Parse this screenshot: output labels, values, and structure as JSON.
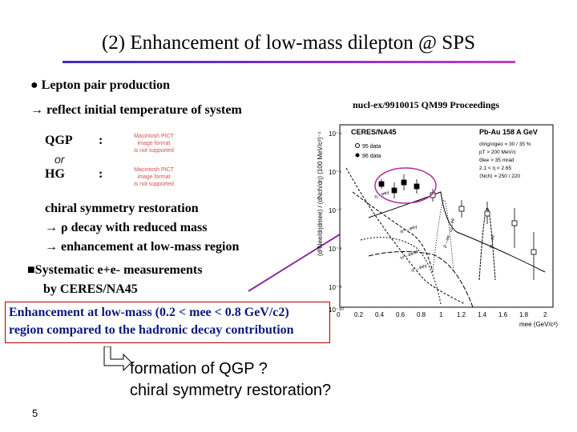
{
  "title": "(2) Enhancement of low-mass dilepton @ SPS",
  "lepton_pair": "● Lepton pair production",
  "reflect": "→ reflect initial temperature of system",
  "qgp": "QGP",
  "or": "or",
  "hg": "HG",
  "colon": ":",
  "pict_placeholder": [
    "Macintosh PICT",
    "image format",
    "is not supported"
  ],
  "chiral_lines": [
    "chiral symmetry restoration",
    "→   ρ decay with reduced mass",
    "→   enhancement at low-mass region"
  ],
  "systematic_line1": "■Systematic e+e- measurements",
  "systematic_line2": "by CERES/NA45",
  "enhancement_line1": "Enhancement at low-mass (0.2 < mee < 0.8 GeV/c2)",
  "enhancement_line2": "region compared to the hadronic decay contribution",
  "formation_line1": "formation of QGP ?",
  "formation_line2": "chiral symmetry restoration?",
  "page_number": "5",
  "reference": "nucl-ex/9910015 QM99 Proceedings",
  "colors": {
    "title_gradient_start": "#3a2fb8",
    "title_gradient_end": "#c040c0",
    "box_border": "#b00000",
    "box_text": "#0a1880",
    "pointer_arrow": "#8a2aa0"
  },
  "plot": {
    "experiment": "CERES/NA45",
    "system": "Pb-Au 158 A GeV",
    "legend": [
      "95 data",
      "96 data"
    ],
    "cuts": [
      "σtrig/σgeo = 30 / 35 %",
      "pT > 200 MeV/c",
      "Θee > 35 mrad",
      "2.1 < η < 2.65",
      "⟨Nch⟩ = 250 / 220"
    ],
    "y_axis_label": "(d²Nee/dηdmee) / (dNch/dη) (100 MeV/c²)⁻¹",
    "x_axis_label": "mee (GeV/c²)",
    "y_ticks": [
      "10⁻⁵",
      "10⁻⁶",
      "10⁻⁷",
      "10⁻⁸",
      "10⁻⁹",
      "10⁻¹⁰"
    ],
    "x_ticks": [
      "0",
      "0.2",
      "0.4",
      "0.6",
      "0.8",
      "1",
      "1.2",
      "1.4",
      "1.6",
      "1.8",
      "2"
    ],
    "curve_labels": [
      "π⁰→eeγ",
      "η→eeγ",
      "ω→eeπ⁰",
      "η'→eeγ",
      "ρ→ee",
      "ω→ee",
      "φ→ee"
    ]
  }
}
